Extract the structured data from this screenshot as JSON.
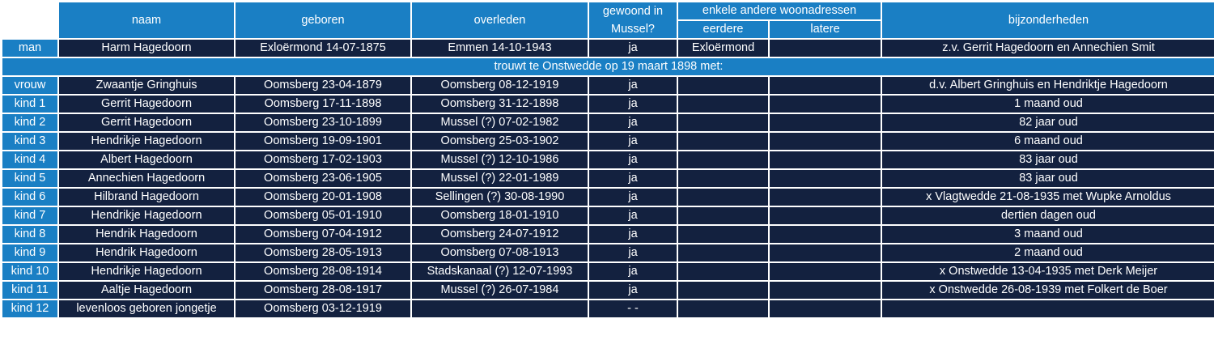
{
  "headers": {
    "naam": "naam",
    "geboren": "geboren",
    "overleden": "overleden",
    "gewoond_line1": "gewoond in",
    "gewoond_line2": "Mussel?",
    "woonadressen": "enkele andere woonadressen",
    "eerdere": "eerdere",
    "latere": "latere",
    "bijzonderheden": "bijzonderheden"
  },
  "man": {
    "role": "man",
    "naam": "Harm Hagedoorn",
    "geboren": "Exloërmond 14-07-1875",
    "overleden": "Emmen 14-10-1943",
    "mussel": "ja",
    "eerdere": "Exloërmond",
    "latere": "",
    "bijzonderheden": "z.v. Gerrit Hagedoorn en Annechien Smit"
  },
  "marriage": "trouwt te Onstwedde op 19 maart 1898 met:",
  "rows": [
    {
      "role": "vrouw",
      "naam": "Zwaantje Gringhuis",
      "geboren": "Oomsberg 23-04-1879",
      "overleden": "Oomsberg 08-12-1919",
      "mussel": "ja",
      "eerdere": "",
      "latere": "",
      "bijzonderheden": "d.v. Albert Gringhuis en Hendriktje Hagedoorn"
    },
    {
      "role": "kind 1",
      "naam": "Gerrit Hagedoorn",
      "geboren": "Oomsberg 17-11-1898",
      "overleden": "Oomsberg 31-12-1898",
      "mussel": "ja",
      "eerdere": "",
      "latere": "",
      "bijzonderheden": "1 maand oud"
    },
    {
      "role": "kind 2",
      "naam": "Gerrit Hagedoorn",
      "geboren": "Oomsberg 23-10-1899",
      "overleden": "Mussel (?) 07-02-1982",
      "mussel": "ja",
      "eerdere": "",
      "latere": "",
      "bijzonderheden": "82 jaar oud"
    },
    {
      "role": "kind 3",
      "naam": "Hendrikje Hagedoorn",
      "geboren": "Oomsberg 19-09-1901",
      "overleden": "Oomsberg 25-03-1902",
      "mussel": "ja",
      "eerdere": "",
      "latere": "",
      "bijzonderheden": "6 maand oud"
    },
    {
      "role": "kind 4",
      "naam": "Albert Hagedoorn",
      "geboren": "Oomsberg 17-02-1903",
      "overleden": "Mussel (?) 12-10-1986",
      "mussel": "ja",
      "eerdere": "",
      "latere": "",
      "bijzonderheden": "83 jaar oud"
    },
    {
      "role": "kind 5",
      "naam": "Annechien Hagedoorn",
      "geboren": "Oomsberg 23-06-1905",
      "overleden": "Mussel (?) 22-01-1989",
      "mussel": "ja",
      "eerdere": "",
      "latere": "",
      "bijzonderheden": "83 jaar oud"
    },
    {
      "role": "kind 6",
      "naam": "Hilbrand Hagedoorn",
      "geboren": "Oomsberg 20-01-1908",
      "overleden": "Sellingen (?) 30-08-1990",
      "mussel": "ja",
      "eerdere": "",
      "latere": "",
      "bijzonderheden": "x Vlagtwedde 21-08-1935 met Wupke Arnoldus"
    },
    {
      "role": "kind 7",
      "naam": "Hendrikje Hagedoorn",
      "geboren": "Oomsberg 05-01-1910",
      "overleden": "Oomsberg 18-01-1910",
      "mussel": "ja",
      "eerdere": "",
      "latere": "",
      "bijzonderheden": "dertien dagen oud"
    },
    {
      "role": "kind 8",
      "naam": "Hendrik Hagedoorn",
      "geboren": "Oomsberg 07-04-1912",
      "overleden": "Oomsberg 24-07-1912",
      "mussel": "ja",
      "eerdere": "",
      "latere": "",
      "bijzonderheden": "3 maand oud"
    },
    {
      "role": "kind 9",
      "naam": "Hendrik Hagedoorn",
      "geboren": "Oomsberg 28-05-1913",
      "overleden": "Oomsberg 07-08-1913",
      "mussel": "ja",
      "eerdere": "",
      "latere": "",
      "bijzonderheden": "2 maand oud"
    },
    {
      "role": "kind 10",
      "naam": "Hendrikje Hagedoorn",
      "geboren": "Oomsberg 28-08-1914",
      "overleden": "Stadskanaal (?) 12-07-1993",
      "mussel": "ja",
      "eerdere": "",
      "latere": "",
      "bijzonderheden": "x Onstwedde 13-04-1935 met Derk Meijer"
    },
    {
      "role": "kind 11",
      "naam": "Aaltje Hagedoorn",
      "geboren": "Oomsberg 28-08-1917",
      "overleden": "Mussel (?) 26-07-1984",
      "mussel": "ja",
      "eerdere": "",
      "latere": "",
      "bijzonderheden": "x Onstwedde 26-08-1939 met Folkert de Boer"
    },
    {
      "role": "kind 12",
      "naam": "levenloos geboren jongetje",
      "geboren": "Oomsberg 03-12-1919",
      "overleden": "",
      "mussel": "- -",
      "eerdere": "",
      "latere": "",
      "bijzonderheden": ""
    }
  ]
}
